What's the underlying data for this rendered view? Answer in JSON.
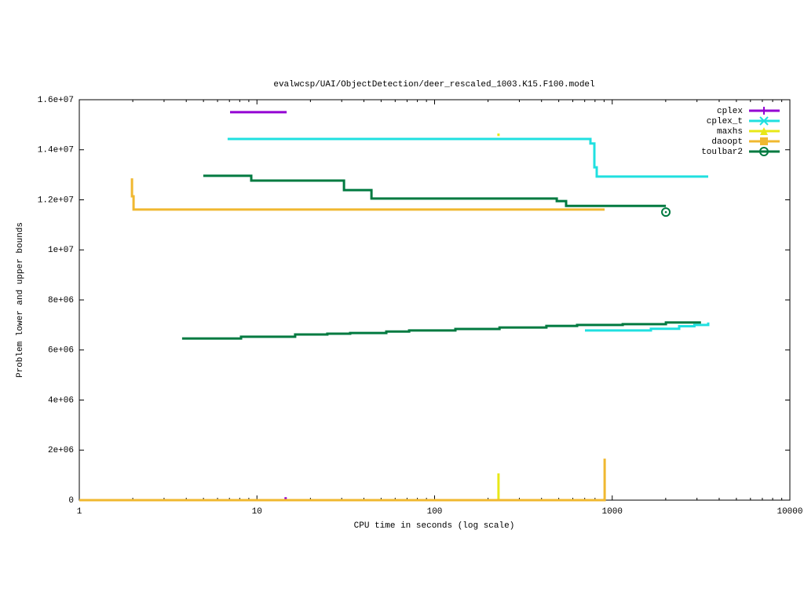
{
  "chart_data": {
    "type": "line",
    "title": "evalwcsp/UAI/ObjectDetection/deer_rescaled_1003.K15.F100.model",
    "x_label": "CPU time in seconds (log scale)",
    "y_label": "Problem lower and upper bounds",
    "x_log": true,
    "xlim": [
      1,
      10000
    ],
    "xticks": [
      1,
      10,
      100,
      1000,
      10000
    ],
    "ylim": [
      0,
      16000000
    ],
    "yticks": [
      0,
      {
        "value": 2000000,
        "label": "2e+06"
      },
      {
        "value": 4000000,
        "label": "4e+06"
      },
      {
        "value": 6000000,
        "label": "6e+06"
      },
      {
        "value": 8000000,
        "label": "8e+06"
      },
      {
        "value": 10000000,
        "label": "1e+07"
      },
      {
        "value": 12000000,
        "label": "1.2e+07"
      },
      {
        "value": 14000000,
        "label": "1.4e+07"
      },
      {
        "value": 16000000,
        "label": "1.6e+07"
      }
    ],
    "legend": "top-right",
    "series": [
      {
        "name": "cplex",
        "color": "#9400d3",
        "marker": "plus",
        "x": [
          7.06,
          14.7,
          null,
          14.5,
          14.5
        ],
        "values": [
          15500000,
          15500000,
          null,
          0,
          120000
        ]
      },
      {
        "name": "cplex_t",
        "color": "#20e0e0",
        "marker": "cross",
        "x": [
          6.84,
          754,
          754,
          793,
          793,
          818,
          818,
          3470,
          null,
          702,
          1651,
          1651,
          2381,
          2381,
          2900,
          2900,
          3470,
          3470
        ],
        "values": [
          14430000,
          14430000,
          14250000,
          14250000,
          13300000,
          13300000,
          12930000,
          12930000,
          null,
          6780000,
          6780000,
          6850000,
          6850000,
          6950000,
          6950000,
          7000000,
          7000000,
          7100000
        ]
      },
      {
        "name": "maxhs",
        "color": "#e8e818",
        "marker": "triangle",
        "x": [
          229,
          229,
          null,
          229,
          229
        ],
        "values": [
          0,
          1070000,
          null,
          14550000,
          14650000
        ]
      },
      {
        "name": "daoopt",
        "color": "#f0b830",
        "marker": "square",
        "x": [
          1.98,
          1.98,
          2.02,
          2.02,
          906,
          null,
          1,
          906,
          906
        ],
        "values": [
          12860000,
          12140000,
          12140000,
          11610000,
          11610000,
          null,
          0,
          0,
          1660000
        ]
      },
      {
        "name": "toulbar2",
        "color": "#007a40",
        "marker": "circle",
        "x": [
          4.99,
          9.29,
          9.29,
          30.9,
          30.9,
          44.1,
          44.1,
          487,
          487,
          550,
          550,
          2004,
          null,
          3.79,
          8.14,
          8.14,
          16.4,
          16.4,
          24.9,
          24.9,
          33.5,
          33.5,
          53.5,
          53.5,
          71.9,
          71.9,
          131,
          131,
          232,
          232,
          426,
          426,
          634,
          634,
          1145,
          1145,
          2004,
          2004,
          3160
        ],
        "values": [
          12960000,
          12960000,
          12770000,
          12770000,
          12390000,
          12390000,
          12050000,
          12050000,
          11950000,
          11950000,
          11760000,
          11760000,
          null,
          6460000,
          6460000,
          6530000,
          6530000,
          6620000,
          6620000,
          6650000,
          6650000,
          6680000,
          6680000,
          6740000,
          6740000,
          6780000,
          6780000,
          6840000,
          6840000,
          6900000,
          6900000,
          6960000,
          6960000,
          7000000,
          7000000,
          7030000,
          7030000,
          7100000,
          7100000
        ],
        "points": {
          "x": [
            2004
          ],
          "values": [
            11510000
          ]
        }
      }
    ]
  }
}
